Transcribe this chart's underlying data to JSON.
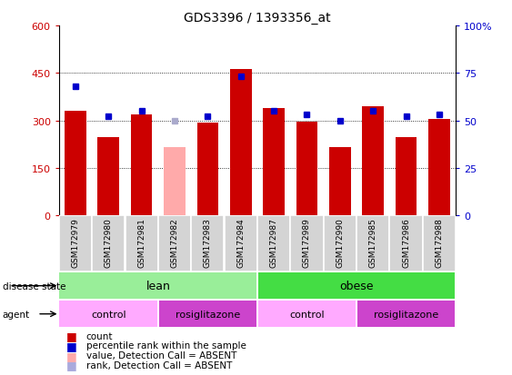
{
  "title": "GDS3396 / 1393356_at",
  "samples": [
    "GSM172979",
    "GSM172980",
    "GSM172981",
    "GSM172982",
    "GSM172983",
    "GSM172984",
    "GSM172987",
    "GSM172989",
    "GSM172990",
    "GSM172985",
    "GSM172986",
    "GSM172988"
  ],
  "bar_values": [
    330,
    248,
    318,
    215,
    293,
    463,
    340,
    297,
    215,
    345,
    248,
    303
  ],
  "bar_colors": [
    "#cc0000",
    "#cc0000",
    "#cc0000",
    "#ffaaaa",
    "#cc0000",
    "#cc0000",
    "#cc0000",
    "#cc0000",
    "#cc0000",
    "#cc0000",
    "#cc0000",
    "#cc0000"
  ],
  "rank_values": [
    68,
    52,
    55,
    50,
    52,
    73,
    55,
    53,
    50,
    55,
    52,
    53
  ],
  "rank_colors": [
    "#0000cc",
    "#0000cc",
    "#0000cc",
    "#aaaacc",
    "#0000cc",
    "#0000cc",
    "#0000cc",
    "#0000cc",
    "#0000cc",
    "#0000cc",
    "#0000cc",
    "#0000cc"
  ],
  "ylim_left": [
    0,
    600
  ],
  "ylim_right": [
    0,
    100
  ],
  "yticks_left": [
    0,
    150,
    300,
    450,
    600
  ],
  "yticks_right": [
    0,
    25,
    50,
    75,
    100
  ],
  "left_tick_labels": [
    "0",
    "150",
    "300",
    "450",
    "600"
  ],
  "right_tick_labels": [
    "0",
    "25",
    "50",
    "75",
    "100%"
  ],
  "disease_state_labels": [
    {
      "label": "lean",
      "span": [
        0,
        6
      ],
      "color": "#99ee99"
    },
    {
      "label": "obese",
      "span": [
        6,
        12
      ],
      "color": "#44dd44"
    }
  ],
  "agent_labels": [
    {
      "label": "control",
      "span": [
        0,
        3
      ],
      "color": "#ffaaff"
    },
    {
      "label": "rosiglitazone",
      "span": [
        3,
        6
      ],
      "color": "#cc44cc"
    },
    {
      "label": "control",
      "span": [
        6,
        9
      ],
      "color": "#ffaaff"
    },
    {
      "label": "rosiglitazone",
      "span": [
        9,
        12
      ],
      "color": "#cc44cc"
    }
  ],
  "bg_color": "#ffffff",
  "axis_color_left": "#cc0000",
  "axis_color_right": "#0000cc",
  "legend_items": [
    {
      "label": "count",
      "color": "#cc0000"
    },
    {
      "label": "percentile rank within the sample",
      "color": "#0000cc"
    },
    {
      "label": "value, Detection Call = ABSENT",
      "color": "#ffaaaa"
    },
    {
      "label": "rank, Detection Call = ABSENT",
      "color": "#aaaadd"
    }
  ]
}
